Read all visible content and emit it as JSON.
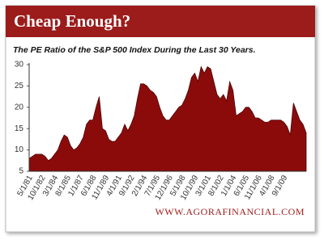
{
  "chart_data": {
    "type": "area",
    "title": "Cheap Enough?",
    "subtitle": "The PE Ratio of the S&P 500 Index During the Last 30 Years.",
    "footer": "WWW.AGORAFINANCIAL.COM",
    "color": "#8b0b0b",
    "categories": [
      "5/1/81",
      null,
      null,
      null,
      "10/1/82",
      null,
      null,
      null,
      "3/1/84",
      null,
      null,
      null,
      "8/1/85",
      null,
      null,
      null,
      "1/1/87",
      null,
      null,
      null,
      "6/1/88",
      null,
      null,
      null,
      "11/1/89",
      null,
      null,
      null,
      "4/1/91",
      null,
      null,
      null,
      "9/1/92",
      null,
      null,
      null,
      "2/1/94",
      null,
      null,
      null,
      "7/1/95",
      null,
      null,
      null,
      "12/1/96",
      null,
      null,
      null,
      "5/1/98",
      null,
      null,
      null,
      "10/1/99",
      null,
      null,
      null,
      "3/1/01",
      null,
      null,
      null,
      "8/1/02",
      null,
      null,
      null,
      "1/1/04",
      null,
      null,
      null,
      "6/1/05",
      null,
      null,
      null,
      "11/1/06",
      null,
      null,
      null,
      "4/1/08",
      null,
      null,
      null,
      "9/1/09",
      null,
      null,
      null,
      null,
      null,
      null,
      null
    ],
    "values": [
      8,
      8.5,
      9,
      9,
      9,
      8.5,
      7.5,
      8,
      9,
      10,
      12,
      13.5,
      13,
      11,
      10,
      10.5,
      11.5,
      13,
      16,
      17,
      17,
      20,
      22.5,
      15,
      14.5,
      12.5,
      12,
      12,
      13,
      14,
      16,
      14.5,
      16,
      18,
      22,
      25.5,
      25.5,
      25,
      24,
      23.5,
      22.5,
      20,
      18,
      17,
      17,
      18,
      19,
      20,
      20.5,
      22,
      24,
      27,
      28,
      26,
      29.5,
      28,
      29.5,
      29,
      26,
      23,
      22,
      23,
      21.5,
      26,
      24,
      18,
      18.5,
      19,
      20,
      20,
      19,
      17.5,
      17.5,
      17,
      16.5,
      16.5,
      17,
      17,
      17,
      17,
      16.5,
      15.5,
      13.5,
      21,
      19,
      17,
      16,
      14
    ],
    "ylim": [
      5,
      30
    ],
    "yticks": [
      5,
      10,
      15,
      20,
      25,
      30
    ]
  }
}
